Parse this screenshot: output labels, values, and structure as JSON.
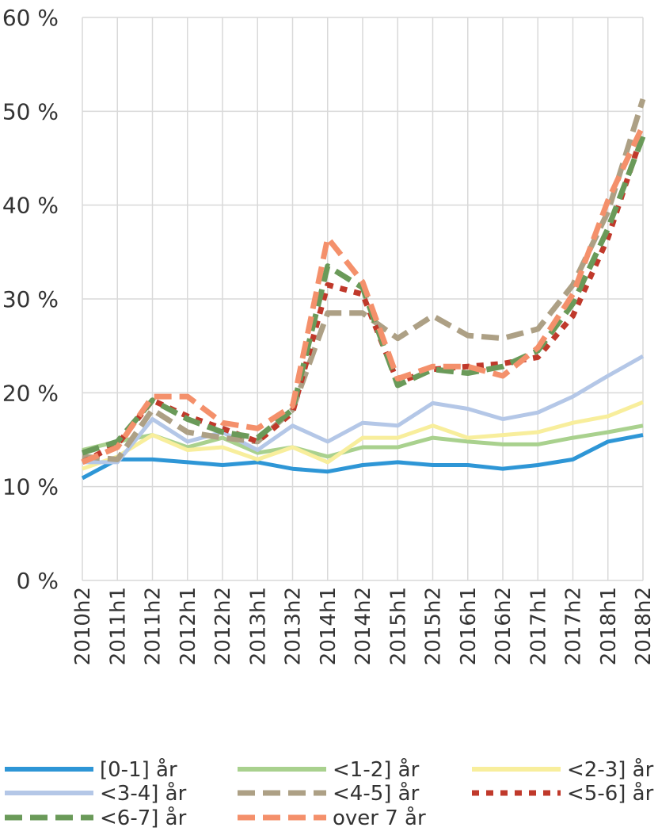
{
  "chart_data": {
    "type": "line",
    "title": "",
    "xlabel": "",
    "ylabel": "",
    "categories": [
      "2010h2",
      "2011h1",
      "2011h2",
      "2012h1",
      "2012h2",
      "2013h1",
      "2013h2",
      "2014h1",
      "2014h2",
      "2015h1",
      "2015h2",
      "2016h1",
      "2016h2",
      "2017h1",
      "2017h2",
      "2018h1",
      "2018h2"
    ],
    "ylim": [
      0,
      60
    ],
    "y_ticks": [
      {
        "value": 0,
        "label": "0 %"
      },
      {
        "value": 10,
        "label": "10 %"
      },
      {
        "value": 20,
        "label": "20 %"
      },
      {
        "value": 30,
        "label": "30 %"
      },
      {
        "value": 40,
        "label": "40 %"
      },
      {
        "value": 50,
        "label": "50 %"
      },
      {
        "value": 60,
        "label": "60 %"
      }
    ],
    "grid": true,
    "legend_position": "bottom",
    "series": [
      {
        "name": "[0-1] år",
        "color": "#2e96d6",
        "dash": "solid",
        "values": [
          10.9,
          12.9,
          12.9,
          12.6,
          12.3,
          12.6,
          11.9,
          11.6,
          12.3,
          12.6,
          12.3,
          12.3,
          11.9,
          12.3,
          12.9,
          14.8,
          15.5
        ]
      },
      {
        "name": "<1-2] år",
        "color": "#a9d18e",
        "dash": "solid",
        "values": [
          13.9,
          14.8,
          15.5,
          14.2,
          15.2,
          13.6,
          14.2,
          13.2,
          14.2,
          14.2,
          15.2,
          14.8,
          14.5,
          14.5,
          15.2,
          15.8,
          16.5
        ]
      },
      {
        "name": "<2-3] år",
        "color": "#f8ee9c",
        "dash": "solid",
        "values": [
          11.9,
          13.2,
          15.5,
          13.9,
          14.2,
          12.9,
          14.2,
          12.6,
          15.2,
          15.2,
          16.5,
          15.2,
          15.5,
          15.8,
          16.8,
          17.5,
          19.0
        ]
      },
      {
        "name": "<3-4] år",
        "color": "#b4c7e7",
        "dash": "solid",
        "values": [
          12.6,
          12.6,
          17.2,
          14.8,
          15.8,
          13.9,
          16.5,
          14.8,
          16.8,
          16.5,
          18.9,
          18.3,
          17.2,
          17.9,
          19.6,
          21.8,
          23.9
        ]
      },
      {
        "name": "<4-5] år",
        "color": "#ada085",
        "dash": "dash",
        "values": [
          13.2,
          12.9,
          18.2,
          15.8,
          15.2,
          14.8,
          18.2,
          28.5,
          28.5,
          25.8,
          28.2,
          26.1,
          25.8,
          26.8,
          31.5,
          39.3,
          51.3
        ]
      },
      {
        "name": "<5-6] år",
        "color": "#c0392b",
        "dash": "dot",
        "values": [
          12.6,
          14.5,
          19.2,
          17.5,
          16.2,
          14.8,
          17.9,
          31.5,
          30.5,
          21.1,
          22.5,
          22.8,
          23.1,
          23.8,
          28.2,
          36.5,
          47.8
        ]
      },
      {
        "name": "<6-7] år",
        "color": "#6a9a59",
        "dash": "dash",
        "values": [
          13.6,
          14.8,
          19.2,
          17.2,
          15.8,
          15.2,
          18.2,
          33.5,
          31.2,
          20.8,
          22.5,
          22.1,
          22.8,
          24.5,
          29.5,
          37.5,
          47.3
        ]
      },
      {
        "name": "over 7 år",
        "color": "#f4906b",
        "dash": "dash",
        "values": [
          12.6,
          14.2,
          19.6,
          19.6,
          16.8,
          16.2,
          18.6,
          36.5,
          31.8,
          21.5,
          22.8,
          22.8,
          21.8,
          24.8,
          30.5,
          40.5,
          48.5
        ]
      }
    ]
  }
}
